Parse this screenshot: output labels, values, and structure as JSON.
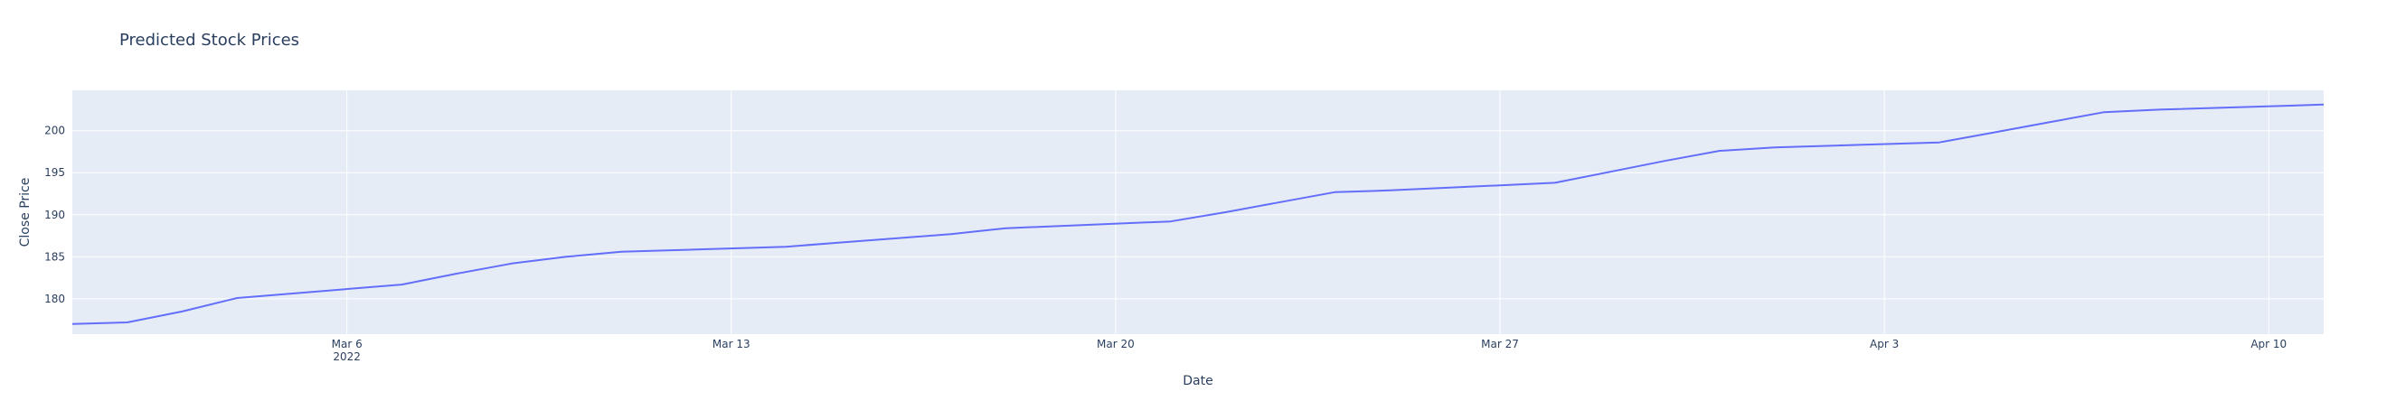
{
  "chart_data": {
    "type": "line",
    "title": "Predicted Stock Prices",
    "xlabel": "Date",
    "ylabel": "Close Price",
    "x_ticks": [
      {
        "date": "2022-03-06",
        "label": "Mar 6",
        "sublabel": "2022"
      },
      {
        "date": "2022-03-13",
        "label": "Mar 13",
        "sublabel": ""
      },
      {
        "date": "2022-03-20",
        "label": "Mar 20",
        "sublabel": ""
      },
      {
        "date": "2022-03-27",
        "label": "Mar 27",
        "sublabel": ""
      },
      {
        "date": "2022-04-03",
        "label": "Apr 3",
        "sublabel": ""
      },
      {
        "date": "2022-04-10",
        "label": "Apr 10",
        "sublabel": ""
      }
    ],
    "y_ticks": [
      180,
      185,
      190,
      195,
      200
    ],
    "xlim": [
      "2022-03-01",
      "2022-04-11"
    ],
    "ylim": [
      175.8,
      204.8
    ],
    "grid": true,
    "series": [
      {
        "color": "#636efa",
        "points": [
          {
            "x": "2022-03-01",
            "y": 177.0
          },
          {
            "x": "2022-03-02",
            "y": 177.2
          },
          {
            "x": "2022-03-03",
            "y": 178.5
          },
          {
            "x": "2022-03-04",
            "y": 180.1
          },
          {
            "x": "2022-03-07",
            "y": 181.7
          },
          {
            "x": "2022-03-08",
            "y": 183.0
          },
          {
            "x": "2022-03-09",
            "y": 184.2
          },
          {
            "x": "2022-03-10",
            "y": 185.0
          },
          {
            "x": "2022-03-11",
            "y": 185.6
          },
          {
            "x": "2022-03-14",
            "y": 186.2
          },
          {
            "x": "2022-03-15",
            "y": 186.7
          },
          {
            "x": "2022-03-16",
            "y": 187.2
          },
          {
            "x": "2022-03-17",
            "y": 187.7
          },
          {
            "x": "2022-03-18",
            "y": 188.4
          },
          {
            "x": "2022-03-21",
            "y": 189.2
          },
          {
            "x": "2022-03-22",
            "y": 190.3
          },
          {
            "x": "2022-03-23",
            "y": 191.5
          },
          {
            "x": "2022-03-24",
            "y": 192.7
          },
          {
            "x": "2022-03-25",
            "y": 192.9
          },
          {
            "x": "2022-03-28",
            "y": 193.8
          },
          {
            "x": "2022-03-29",
            "y": 195.1
          },
          {
            "x": "2022-03-30",
            "y": 196.4
          },
          {
            "x": "2022-03-31",
            "y": 197.6
          },
          {
            "x": "2022-04-01",
            "y": 198.0
          },
          {
            "x": "2022-04-04",
            "y": 198.6
          },
          {
            "x": "2022-04-05",
            "y": 199.8
          },
          {
            "x": "2022-04-06",
            "y": 201.0
          },
          {
            "x": "2022-04-07",
            "y": 202.2
          },
          {
            "x": "2022-04-08",
            "y": 202.5
          },
          {
            "x": "2022-04-11",
            "y": 203.1
          }
        ]
      }
    ]
  }
}
